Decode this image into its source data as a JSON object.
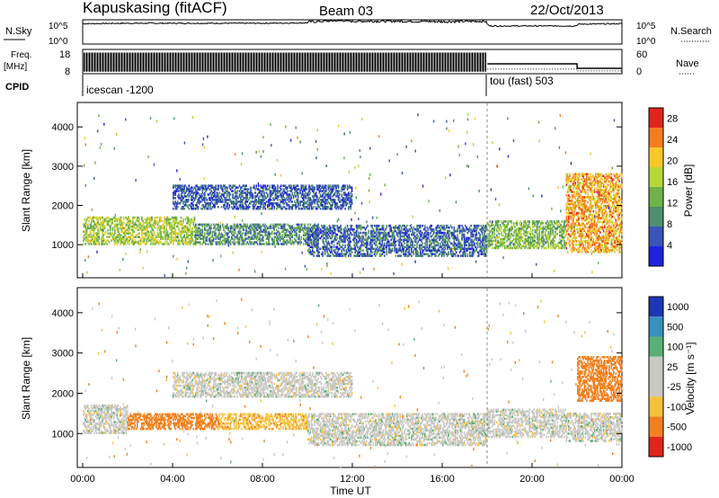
{
  "header": {
    "station": "Kapuskasing (fitACF)",
    "beam": "Beam 03",
    "date": "22/Oct/2013"
  },
  "left_labels": {
    "nsky": "N.Sky",
    "freq": "Freq.",
    "freq_unit": "[MHz]",
    "cpid": "CPID"
  },
  "right_labels": {
    "nsearch": "N.Search",
    "nave": "Nave"
  },
  "cpid_segments": [
    "icescan -1200",
    "tou (fast) 503"
  ],
  "panels": {
    "power_ylabel": "Slant Range [km]",
    "velocity_ylabel": "Slant Range [km]",
    "xlabel": "Time UT",
    "power_cbar_label": "Power [dB]",
    "velocity_cbar_label": "Velocity [m s⁻¹]"
  },
  "chart_data": [
    {
      "id": "noise",
      "type": "line",
      "title": "",
      "ylabel": "N.Sky",
      "y_tick_labels": [
        "10^5",
        "10^0"
      ],
      "right_ylabel": "N.Search",
      "right_tick_labels": [
        "10^5",
        "10^0"
      ],
      "x": [
        0,
        2,
        4,
        6,
        8,
        10,
        11.5,
        12,
        14,
        16,
        17.9,
        18.1,
        20,
        21.9,
        22.1,
        24
      ],
      "series": [
        {
          "name": "N.Sky",
          "log10_values": [
            4.2,
            4.3,
            4.3,
            4.3,
            4.3,
            4.4,
            4.8,
            4.6,
            4.6,
            4.5,
            4.6,
            3.7,
            3.7,
            3.7,
            4.1,
            4.2
          ]
        }
      ]
    },
    {
      "id": "frequency",
      "type": "line",
      "title": "",
      "ylabel": "Freq. [MHz]",
      "y_tick_labels": [
        "18",
        "8"
      ],
      "right_ylabel": "Nave",
      "right_tick_labels": [
        "60",
        "0"
      ],
      "x": [
        0,
        18,
        18.01,
        22,
        22.01,
        24
      ],
      "series": [
        {
          "name": "Freq.",
          "values": [
            12.5,
            12.5,
            12,
            12,
            10,
            10
          ]
        },
        {
          "name": "Nave",
          "values": [
            60,
            60,
            10,
            10,
            5,
            5
          ]
        }
      ]
    },
    {
      "id": "power",
      "type": "heatmap",
      "ylabel": "Slant Range [km]",
      "xlabel": "",
      "xlim": [
        0,
        24
      ],
      "ylim": [
        180,
        4600
      ],
      "y_ticks": [
        1000,
        2000,
        3000,
        4000
      ],
      "colorbar": {
        "label": "Power [dB]",
        "ticks": [
          4,
          8,
          12,
          16,
          20,
          24,
          28
        ],
        "range": [
          0,
          30
        ]
      },
      "echo_bands": [
        {
          "t": [
            0,
            5
          ],
          "r": [
            1000,
            1700
          ],
          "value": 16
        },
        {
          "t": [
            5,
            10.5
          ],
          "r": [
            1000,
            1500
          ],
          "value": 10
        },
        {
          "t": [
            4,
            12
          ],
          "r": [
            1900,
            2500
          ],
          "value": 6
        },
        {
          "t": [
            10,
            18
          ],
          "r": [
            700,
            1500
          ],
          "value": 7
        },
        {
          "t": [
            18,
            21.5
          ],
          "r": [
            900,
            1600
          ],
          "value": 14
        },
        {
          "t": [
            21.5,
            24
          ],
          "r": [
            800,
            2800
          ],
          "value": 22
        }
      ]
    },
    {
      "id": "velocity",
      "type": "heatmap",
      "ylabel": "Slant Range [km]",
      "xlabel": "Time UT",
      "xlim": [
        0,
        24
      ],
      "ylim": [
        180,
        4600
      ],
      "y_ticks": [
        1000,
        2000,
        3000,
        4000
      ],
      "x_tick_labels": [
        "00:00",
        "04:00",
        "08:00",
        "12:00",
        "16:00",
        "20:00",
        "00:00"
      ],
      "colorbar": {
        "label": "Velocity [m s⁻¹]",
        "tick_labels": [
          "1000",
          "500",
          "100",
          "25",
          "-25",
          "-100",
          "-500",
          "-1000"
        ]
      },
      "echo_bands": [
        {
          "t": [
            0,
            2
          ],
          "r": [
            1000,
            1700
          ],
          "value": 0
        },
        {
          "t": [
            2,
            6
          ],
          "r": [
            1100,
            1500
          ],
          "value": -150
        },
        {
          "t": [
            6,
            10
          ],
          "r": [
            1100,
            1500
          ],
          "value": -80
        },
        {
          "t": [
            4,
            12
          ],
          "r": [
            1900,
            2500
          ],
          "value": 0
        },
        {
          "t": [
            10,
            18
          ],
          "r": [
            700,
            1500
          ],
          "value": 0
        },
        {
          "t": [
            18,
            21.5
          ],
          "r": [
            900,
            1600
          ],
          "value": 0
        },
        {
          "t": [
            21.5,
            24
          ],
          "r": [
            800,
            1500
          ],
          "value": 0
        },
        {
          "t": [
            22,
            24
          ],
          "r": [
            1800,
            2900
          ],
          "value": -400
        }
      ]
    }
  ]
}
